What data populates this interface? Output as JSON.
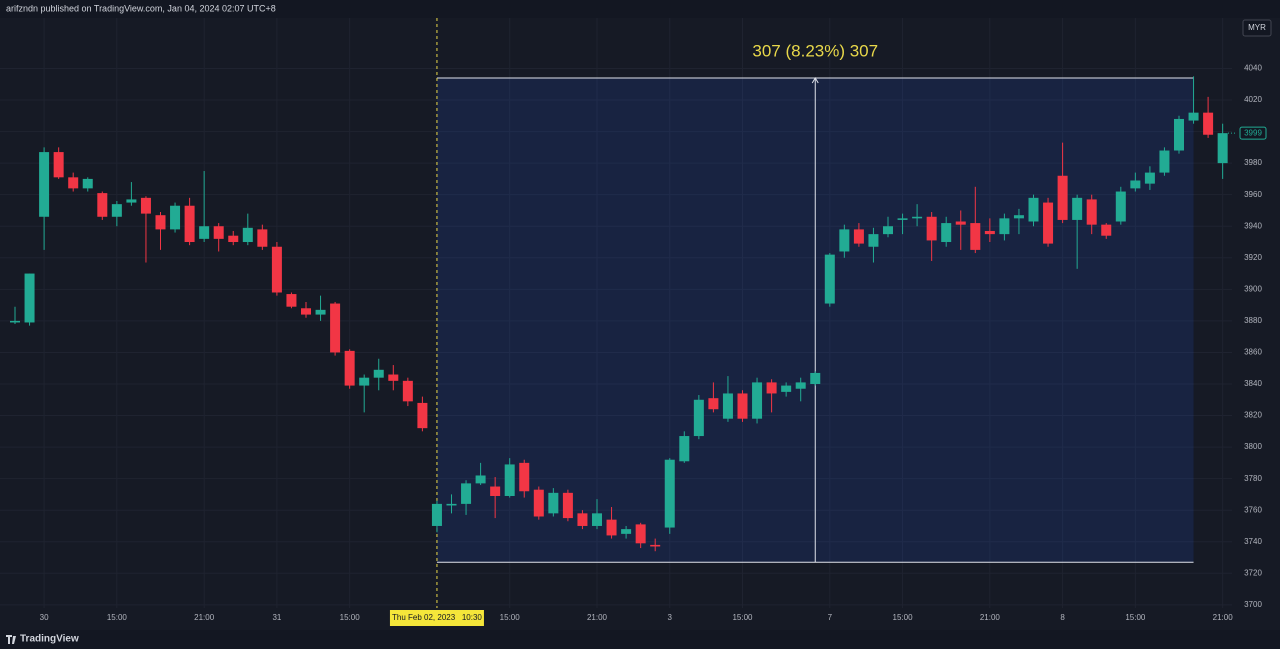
{
  "chart_data": {
    "type": "candlestick",
    "header": "arifzndn published on TradingView.com, Jan 04, 2024 02:07 UTC+8",
    "currency": "MYR",
    "footer": "TradingView",
    "categories": [
      null,
      null,
      "30",
      null,
      null,
      null,
      null,
      "15:00",
      null,
      null,
      null,
      null,
      null,
      "21:00",
      null,
      null,
      null,
      null,
      "31",
      null,
      null,
      null,
      null,
      "15:00",
      null,
      null,
      null,
      null,
      null,
      null,
      null,
      null,
      null,
      null,
      "15:00",
      null,
      null,
      null,
      null,
      null,
      "21:00",
      null,
      null,
      null,
      null,
      "3",
      null,
      null,
      null,
      null,
      "15:00",
      null,
      null,
      null,
      null,
      null,
      "7",
      null,
      null,
      null,
      null,
      "15:00",
      null,
      null,
      null,
      null,
      null,
      "21:00",
      null,
      null,
      null,
      null,
      "8",
      null,
      null,
      null,
      null,
      "15:00",
      null,
      null,
      null,
      null,
      null,
      "21:00"
    ],
    "open": [
      3879,
      3879,
      3946,
      3987,
      3971,
      3964,
      3961,
      3946,
      3955,
      3958,
      3947,
      3938,
      3953,
      3932,
      3940,
      3934,
      3930,
      3938,
      3927,
      3897,
      3888,
      3884,
      3891,
      3861,
      3839,
      3844,
      3846,
      3842,
      3828,
      3750,
      3763,
      3764,
      3777,
      3775,
      3769,
      3790,
      3773,
      3758,
      3771,
      3758,
      3750,
      3754,
      3745,
      3751,
      3738,
      3749,
      3791,
      3807,
      3831,
      3818,
      3834,
      3818,
      3841,
      3835,
      3837,
      3840,
      3891,
      3924,
      3938,
      3927,
      3935,
      3944,
      3945,
      3946,
      3930,
      3943,
      3942,
      3937,
      3935,
      3945,
      3943,
      3955,
      3972,
      3944,
      3957,
      3941,
      3943,
      3964,
      3967,
      3974,
      3988,
      4007,
      4012,
      3980
    ],
    "high": [
      3889,
      3910,
      3990,
      3990,
      3974,
      3971,
      3962,
      3956,
      3968,
      3959,
      3949,
      3955,
      3958,
      3975,
      3942,
      3937,
      3948,
      3941,
      3930,
      3898,
      3892,
      3896,
      3892,
      3862,
      3846,
      3856,
      3852,
      3844,
      3832,
      3766,
      3770,
      3779,
      3790,
      3781,
      3793,
      3792,
      3775,
      3774,
      3773,
      3760,
      3767,
      3762,
      3750,
      3752,
      3742,
      3793,
      3810,
      3833,
      3841,
      3845,
      3836,
      3844,
      3843,
      3841,
      3844,
      3848,
      3923,
      3941,
      3942,
      3939,
      3946,
      3948,
      3954,
      3949,
      3946,
      3950,
      3965,
      3945,
      3948,
      3951,
      3960,
      3958,
      3993,
      3960,
      3960,
      3942,
      3965,
      3974,
      3978,
      3990,
      4010,
      4035,
      4022,
      4005
    ],
    "low": [
      3878,
      3877,
      3925,
      3970,
      3962,
      3962,
      3944,
      3940,
      3953,
      3917,
      3925,
      3936,
      3928,
      3930,
      3924,
      3928,
      3928,
      3925,
      3896,
      3888,
      3882,
      3880,
      3858,
      3837,
      3822,
      3836,
      3836,
      3826,
      3810,
      3746,
      3758,
      3757,
      3776,
      3755,
      3768,
      3768,
      3754,
      3756,
      3753,
      3748,
      3748,
      3742,
      3742,
      3736,
      3734,
      3745,
      3790,
      3805,
      3822,
      3816,
      3816,
      3815,
      3822,
      3832,
      3829,
      3839,
      3889,
      3920,
      3927,
      3917,
      3933,
      3935,
      3940,
      3918,
      3927,
      3925,
      3923,
      3930,
      3931,
      3935,
      3940,
      3927,
      3942,
      3913,
      3935,
      3932,
      3941,
      3962,
      3963,
      3972,
      3986,
      4005,
      3996,
      3970
    ],
    "close": [
      3880,
      3910,
      3987,
      3971,
      3964,
      3970,
      3946,
      3954,
      3957,
      3948,
      3938,
      3953,
      3930,
      3940,
      3932,
      3930,
      3939,
      3927,
      3898,
      3889,
      3884,
      3887,
      3860,
      3839,
      3844,
      3849,
      3842,
      3829,
      3812,
      3764,
      3764,
      3777,
      3782,
      3769,
      3789,
      3772,
      3756,
      3771,
      3755,
      3750,
      3758,
      3744,
      3748,
      3739,
      3737,
      3792,
      3807,
      3830,
      3824,
      3834,
      3818,
      3841,
      3834,
      3839,
      3841,
      3847,
      3922,
      3938,
      3929,
      3935,
      3940,
      3945,
      3946,
      3931,
      3942,
      3941,
      3925,
      3935,
      3945,
      3947,
      3958,
      3929,
      3944,
      3958,
      3941,
      3934,
      3962,
      3969,
      3974,
      3988,
      4008,
      4012,
      3998,
      3999
    ],
    "up_color": "#22ab94",
    "down_color": "#f23645",
    "ylim": [
      3698,
      4072
    ],
    "yticks": [
      3700,
      3720,
      3740,
      3760,
      3780,
      3800,
      3820,
      3840,
      3860,
      3880,
      3900,
      3920,
      3940,
      3960,
      3980,
      4000,
      4020,
      4040
    ],
    "grid": true,
    "last_price": 3999,
    "crosshair": {
      "index": 29,
      "label": "Thu Feb 02, 2023   10:30"
    },
    "measure": {
      "label": "307 (8.23%) 307",
      "low": 3727,
      "high": 4034,
      "start_index": 29,
      "end_index": 81
    }
  }
}
